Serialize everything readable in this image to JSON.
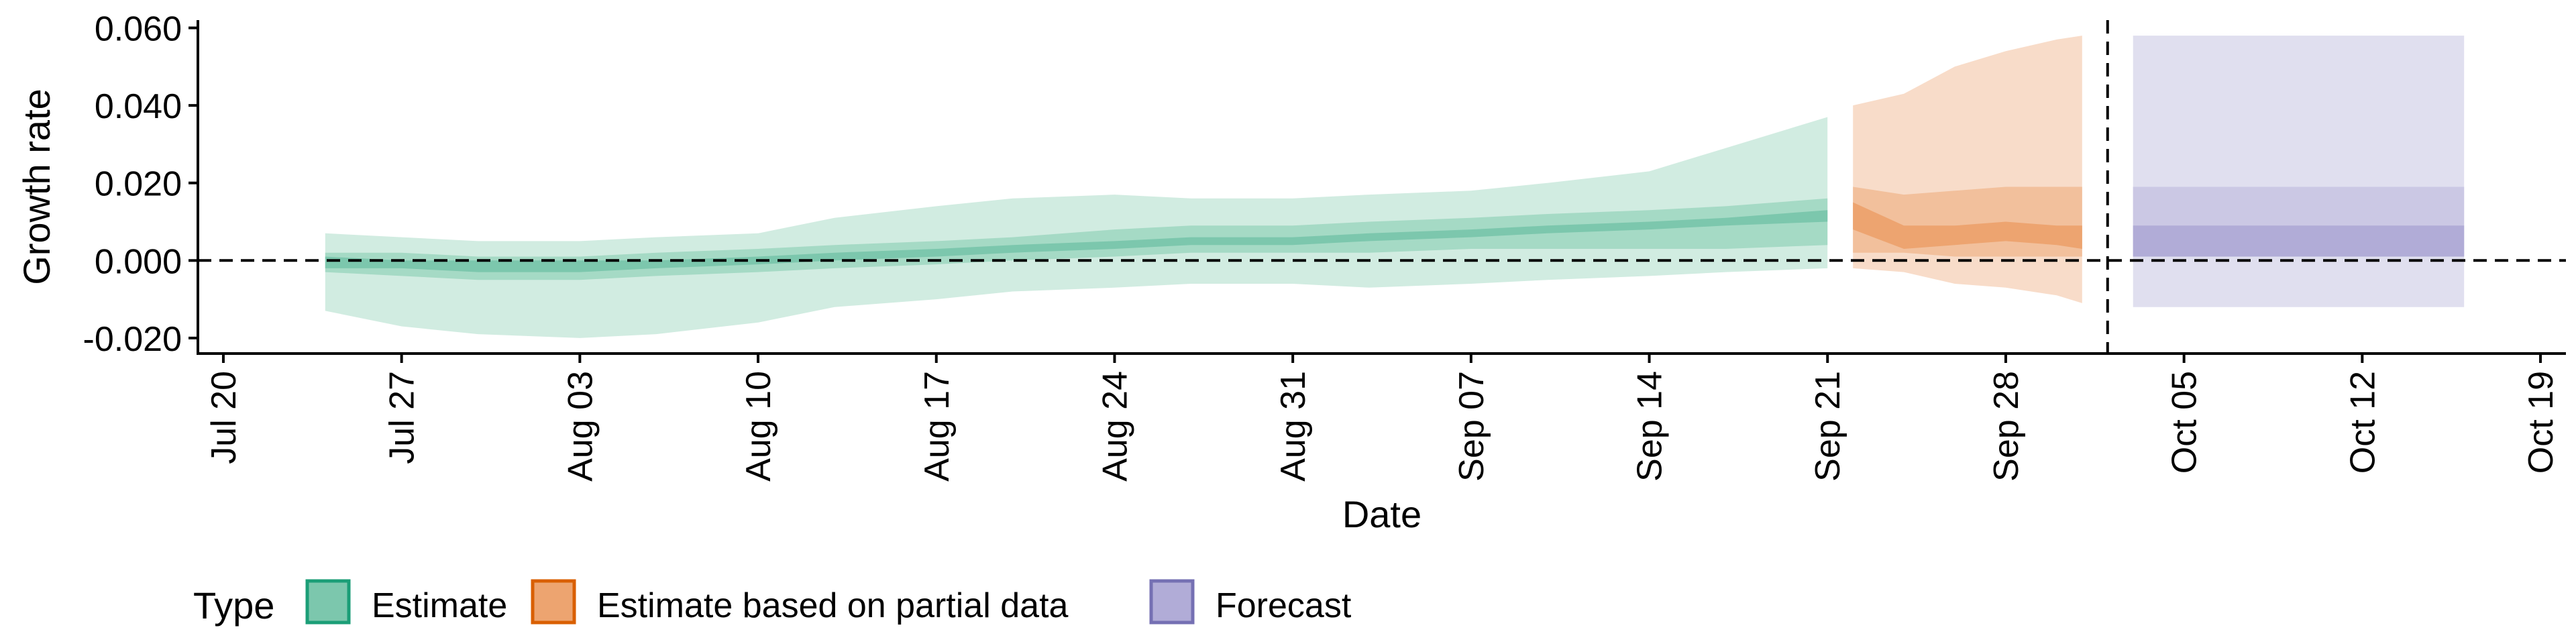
{
  "chart_data": {
    "type": "area",
    "xlabel": "Date",
    "ylabel": "Growth rate",
    "ylim": [
      -0.024,
      0.062
    ],
    "yticks": [
      -0.02,
      0.0,
      0.02,
      0.04,
      0.06
    ],
    "ytick_labels": [
      "-0.020",
      "0.000",
      "0.020",
      "0.040",
      "0.060"
    ],
    "xlim": [
      "2020-07-19",
      "2020-10-20"
    ],
    "xticks": [
      "2020-07-20",
      "2020-07-27",
      "2020-08-03",
      "2020-08-10",
      "2020-08-17",
      "2020-08-24",
      "2020-08-31",
      "2020-09-07",
      "2020-09-14",
      "2020-09-21",
      "2020-09-28",
      "2020-10-05",
      "2020-10-12",
      "2020-10-19"
    ],
    "xtick_labels": [
      "Jul 20",
      "Jul 27",
      "Aug 03",
      "Aug 10",
      "Aug 17",
      "Aug 24",
      "Aug 31",
      "Sep 07",
      "Sep 14",
      "Sep 21",
      "Sep 28",
      "Oct 05",
      "Oct 12",
      "Oct 19"
    ],
    "hline": 0.0,
    "vline": "2020-10-02",
    "legend": {
      "title": "Type",
      "position": "bottom",
      "items": [
        {
          "label": "Estimate",
          "fill": "#7cc7ad",
          "stroke": "#1b9e77"
        },
        {
          "label": "Estimate based on partial data",
          "fill": "#eda470",
          "stroke": "#d95f02"
        },
        {
          "label": "Forecast",
          "fill": "#b1acd7",
          "stroke": "#7570b3"
        }
      ]
    },
    "series": [
      {
        "name": "Estimate",
        "colors": {
          "outer": "#d1ece1",
          "mid": "#a5dac5",
          "inner": "#7cc7ad"
        },
        "x": [
          "2020-07-24",
          "2020-07-27",
          "2020-07-30",
          "2020-08-03",
          "2020-08-06",
          "2020-08-10",
          "2020-08-13",
          "2020-08-17",
          "2020-08-20",
          "2020-08-24",
          "2020-08-27",
          "2020-08-31",
          "2020-09-03",
          "2020-09-07",
          "2020-09-10",
          "2020-09-14",
          "2020-09-17",
          "2020-09-21"
        ],
        "outer_lower": [
          -0.013,
          -0.017,
          -0.019,
          -0.02,
          -0.019,
          -0.016,
          -0.012,
          -0.01,
          -0.008,
          -0.007,
          -0.006,
          -0.006,
          -0.007,
          -0.006,
          -0.005,
          -0.004,
          -0.003,
          -0.002
        ],
        "outer_upper": [
          0.007,
          0.006,
          0.005,
          0.005,
          0.006,
          0.007,
          0.011,
          0.014,
          0.016,
          0.017,
          0.016,
          0.016,
          0.017,
          0.018,
          0.02,
          0.023,
          0.029,
          0.037
        ],
        "mid_lower": [
          -0.003,
          -0.004,
          -0.005,
          -0.005,
          -0.004,
          -0.003,
          -0.002,
          -0.001,
          0.0,
          0.001,
          0.002,
          0.002,
          0.002,
          0.003,
          0.003,
          0.003,
          0.003,
          0.004
        ],
        "mid_upper": [
          0.002,
          0.002,
          0.001,
          0.001,
          0.002,
          0.003,
          0.004,
          0.005,
          0.006,
          0.008,
          0.009,
          0.009,
          0.01,
          0.011,
          0.012,
          0.013,
          0.014,
          0.016
        ],
        "inner_lower": [
          -0.002,
          -0.002,
          -0.003,
          -0.003,
          -0.002,
          -0.001,
          0.0,
          0.001,
          0.002,
          0.003,
          0.004,
          0.004,
          0.005,
          0.006,
          0.007,
          0.008,
          0.009,
          0.01
        ],
        "inner_upper": [
          0.001,
          0.0,
          0.0,
          0.0,
          0.0,
          0.001,
          0.002,
          0.003,
          0.004,
          0.005,
          0.006,
          0.006,
          0.007,
          0.008,
          0.009,
          0.01,
          0.011,
          0.013
        ]
      },
      {
        "name": "Estimate based on partial data",
        "colors": {
          "outer": "#f8dcc9",
          "mid": "#f2c09c",
          "inner": "#eda470"
        },
        "x": [
          "2020-09-22",
          "2020-09-24",
          "2020-09-26",
          "2020-09-28",
          "2020-09-30",
          "2020-10-01"
        ],
        "outer_lower": [
          -0.002,
          -0.003,
          -0.006,
          -0.007,
          -0.009,
          -0.011
        ],
        "outer_upper": [
          0.04,
          0.043,
          0.05,
          0.054,
          0.057,
          0.058
        ],
        "mid_lower": [
          0.002,
          0.002,
          0.001,
          0.001,
          0.001,
          0.001
        ],
        "mid_upper": [
          0.019,
          0.017,
          0.018,
          0.019,
          0.019,
          0.019
        ],
        "inner_lower": [
          0.008,
          0.003,
          0.004,
          0.005,
          0.004,
          0.003
        ],
        "inner_upper": [
          0.015,
          0.009,
          0.009,
          0.01,
          0.009,
          0.009
        ]
      },
      {
        "name": "Forecast",
        "colors": {
          "outer": "#e0dfef",
          "mid": "#cbc8e4",
          "inner": "#b1acd7"
        },
        "x": [
          "2020-10-03",
          "2020-10-16"
        ],
        "outer_lower": [
          -0.012,
          -0.012
        ],
        "outer_upper": [
          0.058,
          0.058
        ],
        "mid_lower": [
          0.001,
          0.001
        ],
        "mid_upper": [
          0.019,
          0.019
        ],
        "inner_lower": [
          0.001,
          0.001
        ],
        "inner_upper": [
          0.009,
          0.009
        ]
      }
    ]
  }
}
